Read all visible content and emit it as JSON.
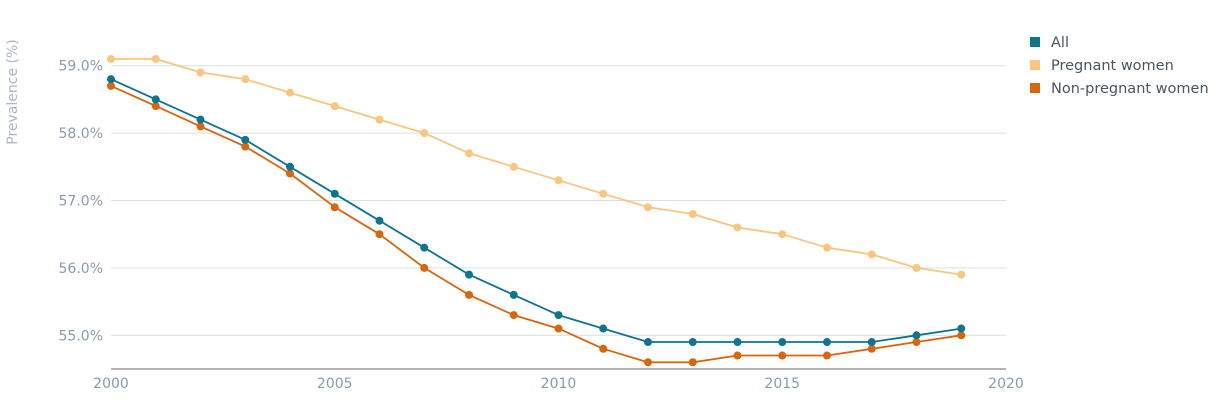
{
  "chart_data": {
    "type": "line",
    "title": "",
    "xlabel": "",
    "ylabel": "Prevalence (%)",
    "xlim": [
      2000,
      2020
    ],
    "ylim": [
      54.5,
      59.5
    ],
    "x_ticks": [
      2000,
      2005,
      2010,
      2015,
      2020
    ],
    "y_ticks": [
      55.0,
      56.0,
      57.0,
      58.0,
      59.0
    ],
    "y_tick_labels": [
      "55.0%",
      "56.0%",
      "57.0%",
      "58.0%",
      "59.0%"
    ],
    "grid": true,
    "legend_position": "top-right",
    "x": [
      2000,
      2001,
      2002,
      2003,
      2004,
      2005,
      2006,
      2007,
      2008,
      2009,
      2010,
      2011,
      2012,
      2013,
      2014,
      2015,
      2016,
      2017,
      2018,
      2019
    ],
    "series": [
      {
        "name": "All",
        "color": "#0e7490",
        "values": [
          58.8,
          58.5,
          58.2,
          57.9,
          57.5,
          57.1,
          56.7,
          56.3,
          55.9,
          55.6,
          55.3,
          55.1,
          54.9,
          54.9,
          54.9,
          54.9,
          54.9,
          54.9,
          55.0,
          55.1
        ]
      },
      {
        "name": "Pregnant women",
        "color": "#f8c67e",
        "values": [
          59.1,
          59.1,
          58.9,
          58.8,
          58.6,
          58.4,
          58.2,
          58.0,
          57.7,
          57.5,
          57.3,
          57.1,
          56.9,
          56.8,
          56.6,
          56.5,
          56.3,
          56.2,
          56.0,
          55.9
        ]
      },
      {
        "name": "Non-pregnant women",
        "color": "#d9650d",
        "values": [
          58.7,
          58.4,
          58.1,
          57.8,
          57.4,
          56.9,
          56.5,
          56.0,
          55.6,
          55.3,
          55.1,
          54.8,
          54.6,
          54.6,
          54.7,
          54.7,
          54.7,
          54.8,
          54.9,
          55.0
        ]
      }
    ]
  }
}
